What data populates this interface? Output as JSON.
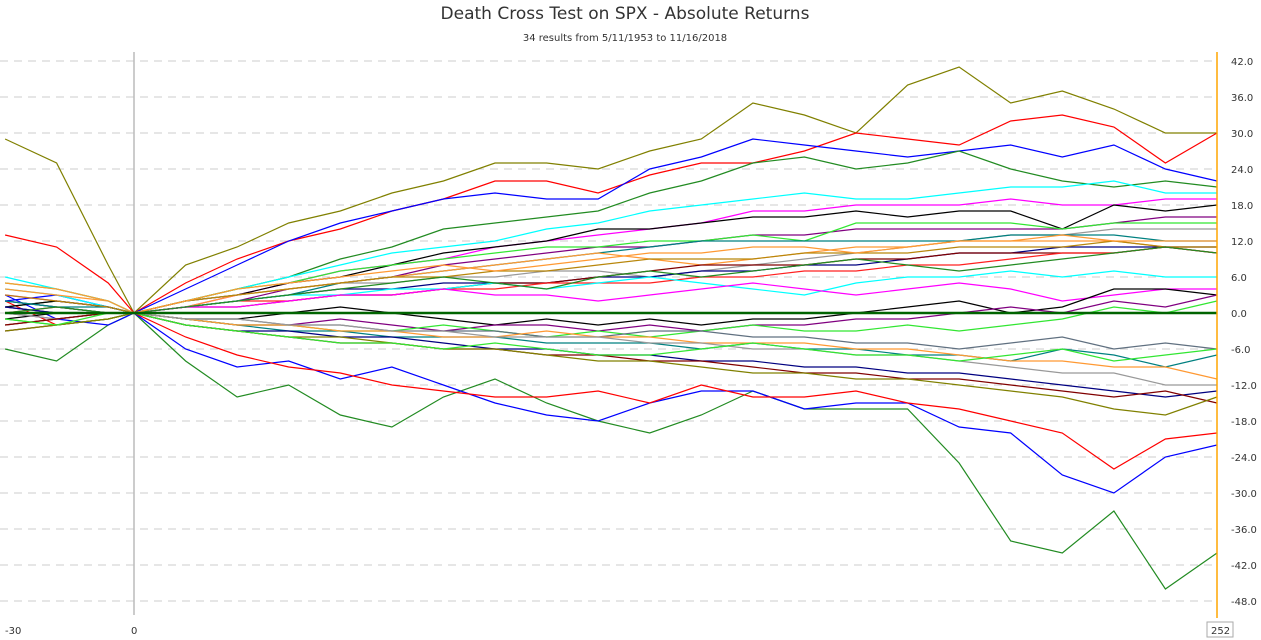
{
  "chart_data": {
    "type": "line",
    "title": "Death Cross Test on SPX - Absolute Returns",
    "subtitle": "34 results from 5/11/1953 to 11/16/2018",
    "xlim": [
      -30,
      252
    ],
    "ylim": [
      -50,
      44
    ],
    "x_tick_labels": [
      "-30",
      "0",
      "252"
    ],
    "y_ticks": [
      42,
      36,
      30,
      24,
      18,
      12,
      6,
      0,
      -6,
      -12,
      -18,
      -24,
      -30,
      -36,
      -42,
      -48
    ],
    "y_axis_side": "right",
    "grid": true,
    "legend": "none",
    "zero_line_color": "#006400",
    "right_axis_color": "#FFA500",
    "x": [
      -30,
      -18,
      -6,
      0,
      12,
      24,
      36,
      48,
      60,
      72,
      84,
      96,
      108,
      120,
      132,
      144,
      156,
      168,
      180,
      192,
      204,
      216,
      228,
      240,
      252
    ],
    "series": [
      {
        "color": "#808000",
        "values": [
          29,
          25,
          8,
          0,
          8,
          11,
          15,
          17,
          20,
          22,
          25,
          25,
          24,
          27,
          29,
          35,
          33,
          30,
          38,
          41,
          35,
          37,
          34,
          30,
          30
        ]
      },
      {
        "color": "#FF0000",
        "values": [
          13,
          11,
          5,
          0,
          5,
          9,
          12,
          14,
          17,
          19,
          22,
          22,
          20,
          23,
          25,
          25,
          27,
          30,
          29,
          28,
          32,
          33,
          31,
          25,
          30
        ]
      },
      {
        "color": "#0000FF",
        "values": [
          2,
          3,
          1,
          0,
          4,
          8,
          12,
          15,
          17,
          19,
          20,
          19,
          19,
          24,
          26,
          29,
          28,
          27,
          26,
          27,
          28,
          26,
          28,
          24,
          22
        ]
      },
      {
        "color": "#228B22",
        "values": [
          1,
          2,
          1,
          0,
          2,
          4,
          6,
          9,
          11,
          14,
          15,
          16,
          17,
          20,
          22,
          25,
          26,
          24,
          25,
          27,
          24,
          22,
          21,
          22,
          21
        ]
      },
      {
        "color": "#228B22",
        "values": [
          -6,
          -8,
          -2,
          0,
          -8,
          -14,
          -12,
          -17,
          -19,
          -14,
          -11,
          -15,
          -18,
          -20,
          -17,
          -13,
          -16,
          -16,
          -16,
          -25,
          -38,
          -40,
          -33,
          -46,
          -40
        ]
      },
      {
        "color": "#0000FF",
        "values": [
          3,
          -1,
          -2,
          0,
          -6,
          -9,
          -8,
          -11,
          -9,
          -12,
          -15,
          -17,
          -18,
          -15,
          -13,
          -13,
          -16,
          -15,
          -15,
          -19,
          -20,
          -27,
          -30,
          -24,
          -22
        ]
      },
      {
        "color": "#FF0000",
        "values": [
          2,
          -2,
          -1,
          0,
          -4,
          -7,
          -9,
          -10,
          -12,
          -13,
          -14,
          -14,
          -13,
          -15,
          -12,
          -14,
          -14,
          -13,
          -15,
          -16,
          -18,
          -20,
          -26,
          -21,
          -20
        ]
      },
      {
        "color": "#00FFFF",
        "values": [
          4,
          3,
          1,
          0,
          2,
          4,
          6,
          8,
          10,
          11,
          12,
          14,
          15,
          17,
          18,
          19,
          20,
          19,
          19,
          20,
          21,
          21,
          22,
          20,
          20
        ]
      },
      {
        "color": "#FF00FF",
        "values": [
          3,
          2,
          1,
          0,
          1,
          3,
          5,
          7,
          8,
          9,
          11,
          12,
          13,
          14,
          15,
          17,
          17,
          18,
          18,
          18,
          19,
          18,
          18,
          19,
          19
        ]
      },
      {
        "color": "#000000",
        "values": [
          1,
          2,
          1,
          0,
          2,
          3,
          5,
          6,
          8,
          10,
          11,
          12,
          14,
          14,
          15,
          16,
          16,
          17,
          16,
          17,
          17,
          14,
          18,
          17,
          18
        ]
      },
      {
        "color": "#800080",
        "values": [
          2,
          1,
          0,
          0,
          1,
          2,
          4,
          5,
          6,
          8,
          9,
          10,
          11,
          11,
          12,
          13,
          13,
          14,
          14,
          14,
          14,
          14,
          15,
          16,
          16
        ]
      },
      {
        "color": "#32E632",
        "values": [
          5,
          4,
          2,
          0,
          2,
          4,
          5,
          7,
          8,
          9,
          10,
          11,
          11,
          12,
          12,
          13,
          12,
          15,
          15,
          15,
          15,
          14,
          15,
          15,
          15
        ]
      },
      {
        "color": "#999999",
        "values": [
          1,
          0,
          0,
          0,
          2,
          3,
          4,
          5,
          5,
          6,
          6,
          7,
          7,
          6,
          7,
          8,
          9,
          10,
          11,
          12,
          13,
          13,
          14,
          14,
          14
        ]
      },
      {
        "color": "#008080",
        "values": [
          2,
          1,
          1,
          0,
          1,
          2,
          3,
          5,
          6,
          7,
          8,
          9,
          10,
          11,
          12,
          12,
          12,
          12,
          12,
          12,
          13,
          13,
          13,
          12,
          12
        ]
      },
      {
        "color": "#FF9933",
        "values": [
          4,
          3,
          2,
          0,
          1,
          3,
          4,
          5,
          6,
          7,
          8,
          9,
          10,
          9,
          8,
          9,
          10,
          11,
          11,
          12,
          12,
          12,
          12,
          11,
          11
        ]
      },
      {
        "color": "#000080",
        "values": [
          -2,
          -1,
          0,
          0,
          1,
          2,
          3,
          4,
          4,
          5,
          5,
          5,
          6,
          6,
          7,
          7,
          8,
          8,
          9,
          10,
          10,
          11,
          11,
          11,
          11
        ]
      },
      {
        "color": "#800000",
        "values": [
          -3,
          -2,
          -1,
          0,
          1,
          1,
          2,
          3,
          3,
          4,
          5,
          5,
          6,
          7,
          8,
          8,
          8,
          9,
          9,
          10,
          10,
          10,
          10,
          11,
          10
        ]
      },
      {
        "color": "#B8860B",
        "values": [
          3,
          2,
          1,
          0,
          2,
          3,
          4,
          5,
          6,
          6,
          7,
          7,
          8,
          9,
          9,
          9,
          10,
          10,
          10,
          11,
          11,
          11,
          12,
          11,
          11
        ]
      },
      {
        "color": "#FF2020",
        "values": [
          0,
          1,
          0,
          0,
          1,
          2,
          2,
          3,
          3,
          4,
          4,
          5,
          5,
          5,
          6,
          6,
          7,
          7,
          8,
          8,
          9,
          10,
          10,
          11,
          10
        ]
      },
      {
        "color": "#00FFFF",
        "values": [
          6,
          4,
          2,
          0,
          1,
          2,
          3,
          3,
          4,
          4,
          5,
          4,
          5,
          6,
          5,
          4,
          3,
          5,
          6,
          6,
          7,
          6,
          7,
          6,
          6
        ]
      },
      {
        "color": "#FF00FF",
        "values": [
          1,
          0,
          0,
          0,
          1,
          1,
          2,
          3,
          3,
          4,
          3,
          3,
          2,
          3,
          4,
          5,
          4,
          3,
          4,
          5,
          4,
          2,
          3,
          4,
          4
        ]
      },
      {
        "color": "#000000",
        "values": [
          -1,
          0,
          0,
          0,
          -1,
          -1,
          0,
          1,
          0,
          -1,
          -2,
          -1,
          -2,
          -1,
          -2,
          -1,
          -1,
          0,
          1,
          2,
          0,
          1,
          4,
          4,
          3
        ]
      },
      {
        "color": "#800080",
        "values": [
          0,
          -1,
          0,
          0,
          -1,
          -2,
          -2,
          -1,
          -2,
          -3,
          -2,
          -2,
          -3,
          -2,
          -3,
          -2,
          -2,
          -1,
          -1,
          0,
          1,
          0,
          2,
          1,
          3
        ]
      },
      {
        "color": "#32E632",
        "values": [
          -1,
          -2,
          -1,
          0,
          -1,
          -2,
          -2,
          -3,
          -3,
          -2,
          -3,
          -4,
          -3,
          -4,
          -3,
          -2,
          -3,
          -3,
          -2,
          -3,
          -2,
          -1,
          1,
          0,
          2
        ]
      },
      {
        "color": "#607080",
        "values": [
          1,
          0,
          0,
          0,
          -1,
          -1,
          -2,
          -2,
          -3,
          -3,
          -3,
          -4,
          -4,
          -3,
          -3,
          -4,
          -4,
          -5,
          -5,
          -6,
          -5,
          -4,
          -6,
          -5,
          -6
        ]
      },
      {
        "color": "#008080",
        "values": [
          2,
          1,
          0,
          0,
          -1,
          -2,
          -3,
          -3,
          -4,
          -4,
          -4,
          -5,
          -5,
          -5,
          -6,
          -5,
          -6,
          -6,
          -7,
          -7,
          -8,
          -6,
          -7,
          -9,
          -7
        ]
      },
      {
        "color": "#FF9933",
        "values": [
          -2,
          -1,
          0,
          0,
          -1,
          -2,
          -2,
          -3,
          -3,
          -4,
          -4,
          -3,
          -4,
          -4,
          -5,
          -5,
          -5,
          -6,
          -6,
          -7,
          -8,
          -8,
          -9,
          -9,
          -11
        ]
      },
      {
        "color": "#999999",
        "values": [
          0,
          -1,
          0,
          0,
          -1,
          -1,
          -2,
          -2,
          -3,
          -3,
          -4,
          -4,
          -4,
          -5,
          -5,
          -6,
          -6,
          -7,
          -7,
          -8,
          -9,
          -10,
          -10,
          -12,
          -12
        ]
      },
      {
        "color": "#000080",
        "values": [
          1,
          0,
          0,
          0,
          -2,
          -3,
          -3,
          -4,
          -4,
          -5,
          -6,
          -6,
          -7,
          -7,
          -8,
          -8,
          -9,
          -9,
          -10,
          -10,
          -11,
          -12,
          -13,
          -14,
          -13
        ]
      },
      {
        "color": "#800000",
        "values": [
          -2,
          -1,
          0,
          0,
          -2,
          -3,
          -4,
          -5,
          -5,
          -6,
          -6,
          -7,
          -7,
          -8,
          -8,
          -9,
          -10,
          -10,
          -11,
          -11,
          -12,
          -13,
          -14,
          -13,
          -15
        ]
      },
      {
        "color": "#808000",
        "values": [
          -3,
          -2,
          -1,
          0,
          -2,
          -3,
          -4,
          -4,
          -5,
          -6,
          -6,
          -7,
          -8,
          -8,
          -9,
          -10,
          -10,
          -11,
          -11,
          -12,
          -13,
          -14,
          -16,
          -17,
          -14
        ]
      },
      {
        "color": "#32E632",
        "values": [
          -1,
          -2,
          0,
          0,
          -2,
          -3,
          -4,
          -5,
          -5,
          -6,
          -5,
          -6,
          -7,
          -7,
          -6,
          -5,
          -6,
          -7,
          -7,
          -8,
          -7,
          -6,
          -8,
          -7,
          -6
        ]
      },
      {
        "color": "#228B22",
        "values": [
          0,
          1,
          0,
          0,
          1,
          2,
          3,
          4,
          5,
          6,
          5,
          4,
          6,
          7,
          6,
          7,
          8,
          9,
          8,
          7,
          8,
          9,
          10,
          11,
          10
        ]
      },
      {
        "color": "#FF9933",
        "values": [
          5,
          4,
          2,
          0,
          2,
          4,
          5,
          6,
          7,
          8,
          7,
          8,
          9,
          10,
          10,
          11,
          11,
          10,
          11,
          12,
          12,
          13,
          12,
          12,
          12
        ]
      }
    ]
  }
}
